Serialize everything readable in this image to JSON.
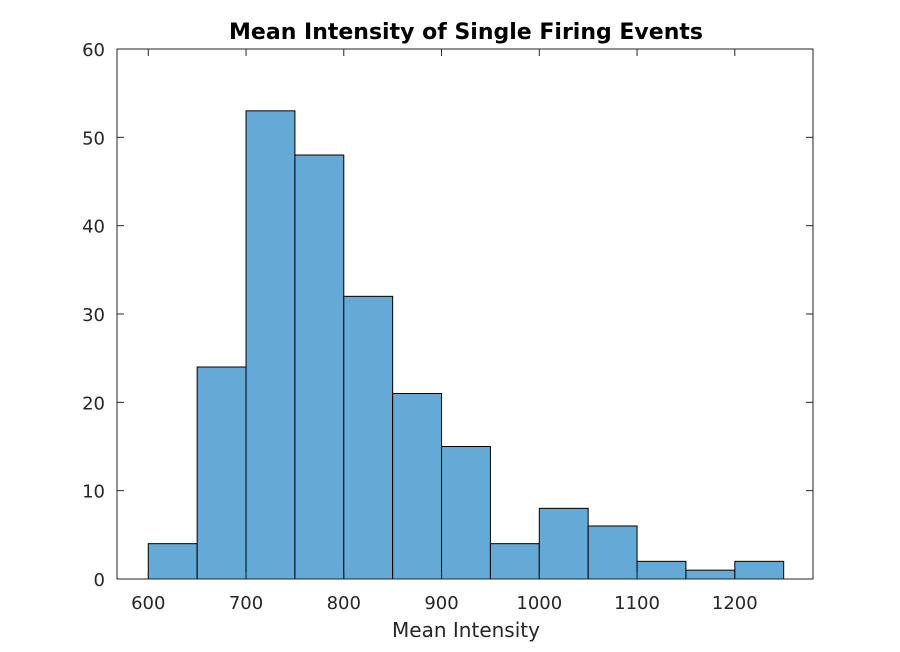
{
  "chart_data": {
    "type": "bar",
    "title": "Mean Intensity of Single Firing Events",
    "xlabel": "Mean Intensity",
    "ylabel": "",
    "bin_edges": [
      600,
      650,
      700,
      750,
      800,
      850,
      900,
      950,
      1000,
      1050,
      1100,
      1150,
      1200,
      1250
    ],
    "values": [
      4,
      24,
      53,
      48,
      32,
      21,
      15,
      4,
      8,
      6,
      2,
      1,
      2
    ],
    "xlim": [
      568,
      1280
    ],
    "ylim": [
      0,
      60
    ],
    "xticks": [
      600,
      700,
      800,
      900,
      1000,
      1100,
      1200
    ],
    "yticks": [
      0,
      10,
      20,
      30,
      40,
      50,
      60
    ],
    "bar_color": "#65a9d7",
    "grid": false
  }
}
